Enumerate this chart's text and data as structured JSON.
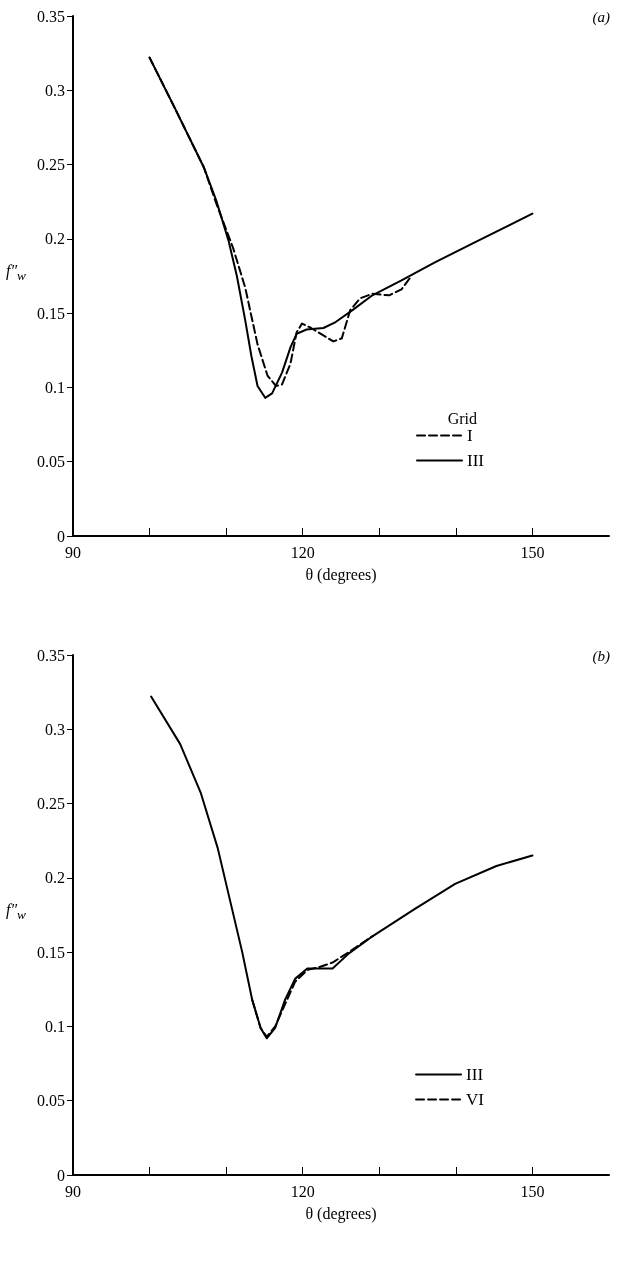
{
  "chart_data": [
    {
      "type": "line",
      "title": "(a)",
      "xlabel": "θ (degrees)",
      "ylabel": "f″$_{w}$",
      "legend_title": "Grid",
      "legend": "bottom right",
      "grid": false,
      "marker": "none",
      "xlim": [
        90,
        160
      ],
      "xticks": [
        90,
        {
          "value": 100,
          "label": null
        },
        {
          "value": 110,
          "label": null
        },
        120,
        {
          "value": 130,
          "label": null
        },
        {
          "value": 140,
          "label": null
        },
        150
      ],
      "ylim": [
        0,
        0.35
      ],
      "yticks": [
        0,
        0.05,
        0.1,
        0.15,
        0.2,
        0.25,
        0.3,
        0.35
      ],
      "series": [
        {
          "name": "I",
          "color": "#000000",
          "line_style": "dashed",
          "x": [
            100,
            103.3,
            107.1,
            108.7,
            110.9,
            112.5,
            114.1,
            115.4,
            116.5,
            117.3,
            118.4,
            119.2,
            119.9,
            121.1,
            122.7,
            124,
            125.1,
            126.2,
            127.5,
            129.1,
            131.3,
            132.9,
            134.2
          ],
          "values": [
            0.322,
            0.288,
            0.248,
            0.224,
            0.194,
            0.167,
            0.129,
            0.108,
            0.101,
            0.102,
            0.116,
            0.137,
            0.143,
            0.14,
            0.135,
            0.131,
            0.133,
            0.152,
            0.16,
            0.163,
            0.162,
            0.166,
            0.175
          ]
        },
        {
          "name": "III",
          "color": "#000000",
          "line_style": "solid",
          "x": [
            100,
            103.3,
            107.1,
            108.7,
            110.3,
            111.4,
            112.5,
            113.3,
            114.1,
            115.1,
            116,
            117.3,
            118.4,
            119.2,
            120.5,
            122.7,
            124.3,
            126.5,
            129.1,
            132.9,
            137.2,
            142.6,
            150
          ],
          "values": [
            0.322,
            0.288,
            0.248,
            0.226,
            0.199,
            0.175,
            0.145,
            0.121,
            0.101,
            0.093,
            0.096,
            0.11,
            0.127,
            0.136,
            0.139,
            0.14,
            0.144,
            0.152,
            0.162,
            0.172,
            0.184,
            0.198,
            0.217
          ]
        }
      ]
    },
    {
      "type": "line",
      "title": "(b)",
      "xlabel": "θ (degrees)",
      "ylabel": "f″$_{w}$",
      "legend": "bottom right",
      "grid": false,
      "marker": "none",
      "xlim": [
        90,
        160
      ],
      "xticks": [
        90,
        {
          "value": 100,
          "label": null
        },
        {
          "value": 110,
          "label": null
        },
        120,
        {
          "value": 130,
          "label": null
        },
        {
          "value": 140,
          "label": null
        },
        150
      ],
      "ylim": [
        0,
        0.35
      ],
      "yticks": [
        0,
        0.05,
        0.1,
        0.15,
        0.2,
        0.25,
        0.3,
        0.35
      ],
      "series": [
        {
          "name": "III",
          "color": "#000000",
          "line_style": "solid",
          "x": [
            100.2,
            104,
            106.7,
            108.9,
            110.5,
            112.1,
            113.4,
            114.5,
            115.3,
            116.4,
            117.7,
            119,
            120.6,
            122.2,
            123.9,
            126,
            129.2,
            134.6,
            139.9,
            145.3,
            150
          ],
          "values": [
            0.322,
            0.29,
            0.257,
            0.22,
            0.185,
            0.15,
            0.118,
            0.099,
            0.092,
            0.099,
            0.118,
            0.132,
            0.139,
            0.139,
            0.139,
            0.149,
            0.161,
            0.179,
            0.196,
            0.208,
            0.215
          ]
        },
        {
          "name": "VI",
          "color": "#000000",
          "line_style": "dashed",
          "x": [
            113.4,
            114.5,
            115.3,
            116.4,
            117.7,
            119,
            120.6,
            122.2,
            123.9,
            126,
            129.2
          ],
          "values": [
            0.118,
            0.099,
            0.093,
            0.1,
            0.115,
            0.13,
            0.138,
            0.14,
            0.143,
            0.15,
            0.161
          ]
        }
      ]
    }
  ]
}
